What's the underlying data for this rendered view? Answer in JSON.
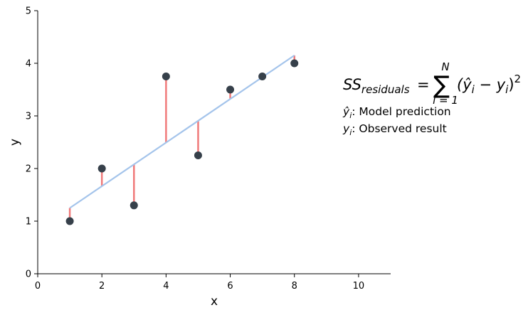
{
  "chart_data": {
    "type": "scatter",
    "title": "",
    "xlabel": "x",
    "ylabel": "y",
    "xlim": [
      0,
      11
    ],
    "ylim": [
      0,
      5
    ],
    "xticks": [
      0,
      2,
      4,
      6,
      8,
      10
    ],
    "yticks": [
      0,
      1,
      2,
      3,
      4,
      5
    ],
    "grid": false,
    "points": [
      {
        "x": 1,
        "y": 1.0
      },
      {
        "x": 2,
        "y": 2.0
      },
      {
        "x": 3,
        "y": 1.3
      },
      {
        "x": 4,
        "y": 3.75
      },
      {
        "x": 5,
        "y": 2.25
      },
      {
        "x": 6,
        "y": 3.5
      },
      {
        "x": 7,
        "y": 3.75
      },
      {
        "x": 8,
        "y": 4.0
      }
    ],
    "fit_line": {
      "x": [
        1,
        8
      ],
      "y": [
        1.25,
        4.15
      ]
    },
    "colors": {
      "points": "#36404a",
      "fit_line": "#a4c4eb",
      "residuals": "#f07a7a",
      "axes": "#000000"
    },
    "annotations": {
      "formula": {
        "lhs_symbol": "SS",
        "lhs_subscript": "residuals",
        "equals": "=",
        "sum_symbol": "∑",
        "sum_upper": "N",
        "sum_lower": "i = 1",
        "term": "(ŷ",
        "term_sub_1": "i",
        "term_mid": " − y",
        "term_sub_2": "i",
        "term_close": ")",
        "exponent": "2"
      },
      "note_1": {
        "symbol": "ŷ",
        "sub": "i",
        "text": ": Model prediction"
      },
      "note_2": {
        "symbol": "y",
        "sub": "i",
        "text": ": Observed result"
      }
    }
  }
}
